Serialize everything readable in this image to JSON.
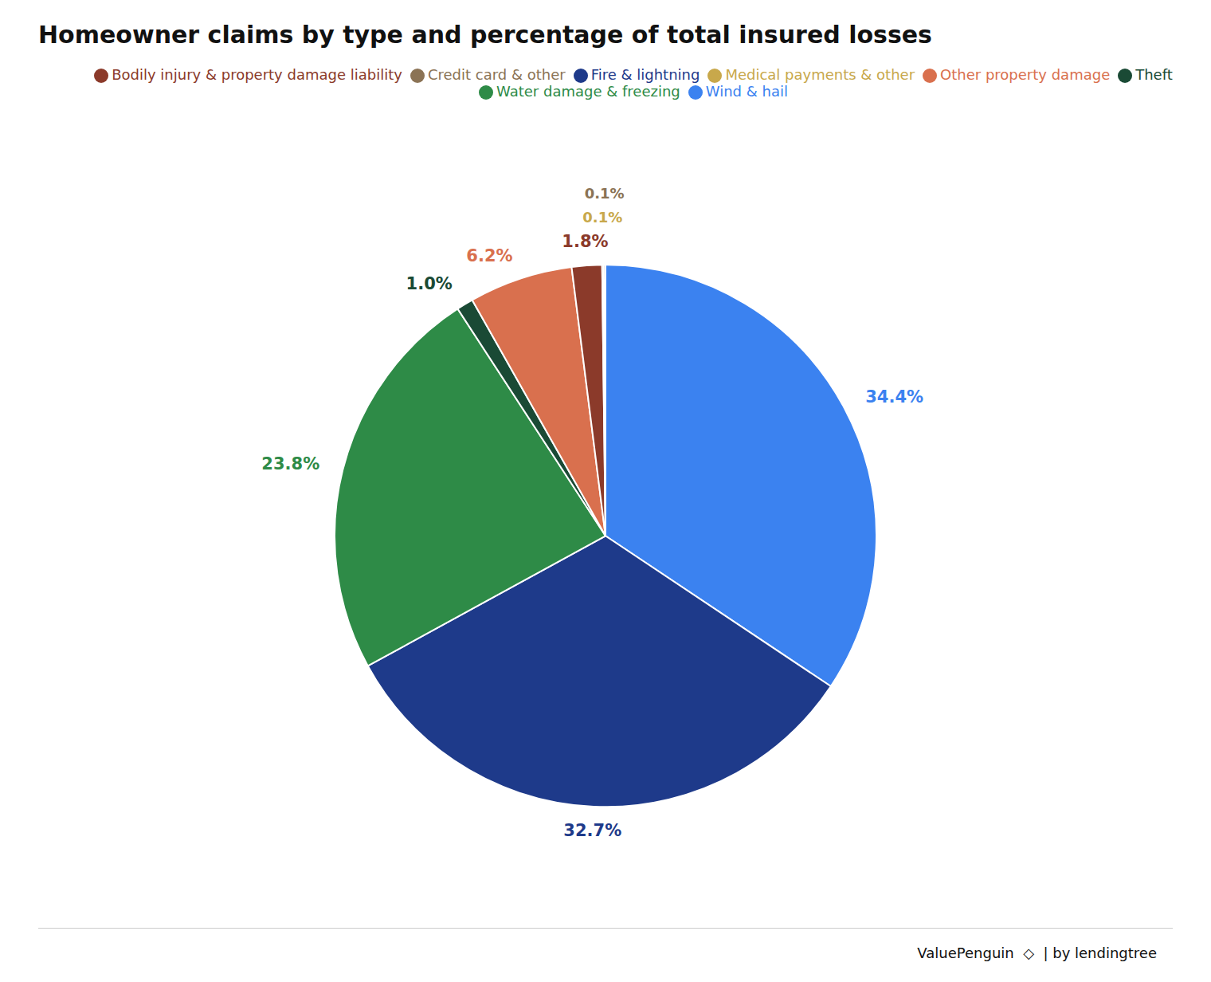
{
  "chart_data": {
    "type": "pie",
    "title": "Homeowner claims by type and percentage of total insured losses",
    "categories": [
      "Wind & hail",
      "Fire & lightning",
      "Water damage & freezing",
      "Theft",
      "Other property damage",
      "Bodily injury & property damage liability",
      "Medical payments & other",
      "Credit card & other"
    ],
    "values": [
      34.4,
      32.7,
      23.8,
      1.0,
      6.2,
      1.8,
      0.1,
      0.1
    ],
    "value_labels": [
      "34.4%",
      "32.7%",
      "23.8%",
      "1.0%",
      "6.2%",
      "1.8%",
      "0.1%",
      "0.1%"
    ],
    "colors": [
      "#3b82f0",
      "#1e3a8a",
      "#2e8b47",
      "#1a4a35",
      "#d9704e",
      "#8b3a2a",
      "#c8a84b",
      "#8b7355"
    ],
    "data_labels": true,
    "legend": "top",
    "annotations": [
      "ValuePenguin  ◇  | by lendingtree"
    ]
  }
}
